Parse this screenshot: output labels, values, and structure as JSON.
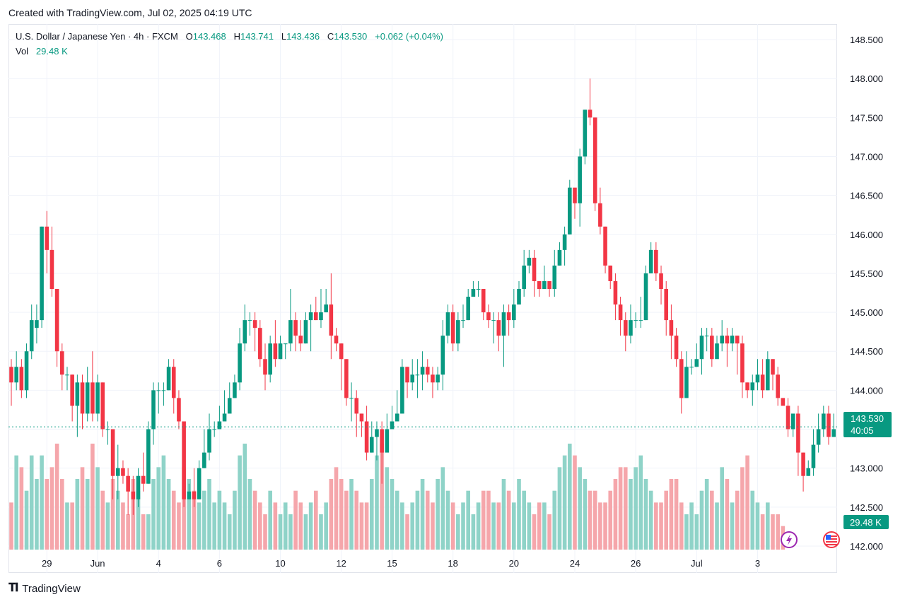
{
  "header": {
    "created_text": "Created with TradingView.com, Jul 02, 2025 04:19 UTC"
  },
  "legend": {
    "symbol": "U.S. Dollar / Japanese Yen · 4h · FXCM",
    "o_label": "O",
    "o_value": "143.468",
    "h_label": "H",
    "h_value": "143.741",
    "l_label": "L",
    "l_value": "143.436",
    "c_label": "C",
    "c_value": "143.530",
    "change": "+0.062 (+0.04%)",
    "vol_label": "Vol",
    "vol_value": "29.48 K"
  },
  "price_badge": {
    "price": "143.530",
    "countdown": "40:05"
  },
  "volume_badge": {
    "value": "29.48 K"
  },
  "footer": {
    "brand": "TradingView"
  },
  "colors": {
    "up": "#089981",
    "down": "#f23645",
    "vol_up": "#8fd3c8",
    "vol_down": "#f5a6ab",
    "last_line": "#089981"
  },
  "icons": {
    "flash": "flash-icon",
    "flag": "us-flag-icon"
  },
  "chart_data": {
    "type": "candlestick",
    "y_ticks": [
      "142.000",
      "142.500",
      "143.000",
      "143.500",
      "144.000",
      "144.500",
      "145.000",
      "145.500",
      "146.000",
      "146.500",
      "147.000",
      "147.500",
      "148.000",
      "148.500"
    ],
    "ylim": [
      141.9,
      148.7
    ],
    "x_ticks": [
      {
        "label": "29",
        "index": 7
      },
      {
        "label": "Jun",
        "index": 17
      },
      {
        "label": "4",
        "index": 29
      },
      {
        "label": "6",
        "index": 41
      },
      {
        "label": "10",
        "index": 53
      },
      {
        "label": "12",
        "index": 65
      },
      {
        "label": "15",
        "index": 75
      },
      {
        "label": "18",
        "index": 87
      },
      {
        "label": "20",
        "index": 99
      },
      {
        "label": "24",
        "index": 111
      },
      {
        "label": "26",
        "index": 123
      },
      {
        "label": "Jul",
        "index": 135
      },
      {
        "label": "3",
        "index": 147
      }
    ],
    "last_price": 143.53,
    "candles": [
      [
        144.3,
        144.1,
        144.4,
        143.8
      ],
      [
        144.1,
        144.3,
        144.5,
        144.0
      ],
      [
        144.3,
        144.0,
        144.4,
        143.9
      ],
      [
        144.0,
        144.5,
        144.6,
        143.9
      ],
      [
        144.5,
        144.9,
        145.1,
        144.4
      ],
      [
        144.8,
        144.9,
        145.1,
        144.6
      ],
      [
        144.9,
        146.1,
        146.1,
        144.8
      ],
      [
        146.1,
        145.8,
        146.3,
        145.5
      ],
      [
        145.8,
        145.3,
        146.1,
        145.2
      ],
      [
        145.3,
        144.5,
        145.3,
        144.3
      ],
      [
        144.5,
        144.2,
        144.6,
        144.0
      ],
      [
        144.2,
        144.2,
        144.3,
        144.0
      ],
      [
        144.2,
        143.8,
        144.2,
        143.6
      ],
      [
        143.8,
        144.1,
        144.2,
        143.4
      ],
      [
        144.1,
        143.7,
        144.2,
        143.5
      ],
      [
        143.7,
        144.1,
        144.3,
        143.6
      ],
      [
        144.1,
        143.7,
        144.5,
        143.6
      ],
      [
        143.7,
        144.1,
        144.2,
        143.6
      ],
      [
        144.1,
        143.5,
        144.1,
        143.4
      ],
      [
        143.5,
        143.5,
        143.6,
        143.3
      ],
      [
        143.5,
        142.9,
        143.5,
        142.6
      ],
      [
        142.9,
        143.0,
        143.3,
        142.6
      ],
      [
        143.0,
        142.9,
        143.1,
        142.8
      ],
      [
        142.9,
        142.7,
        143.0,
        142.4
      ],
      [
        142.7,
        142.6,
        142.9,
        142.4
      ],
      [
        142.6,
        142.9,
        143.0,
        142.5
      ],
      [
        142.9,
        142.8,
        143.2,
        142.7
      ],
      [
        142.8,
        143.5,
        143.6,
        142.8
      ],
      [
        143.5,
        144.0,
        144.1,
        143.3
      ],
      [
        144.0,
        144.0,
        144.1,
        143.7
      ],
      [
        144.0,
        144.0,
        144.1,
        143.8
      ],
      [
        144.0,
        144.3,
        144.4,
        144.0
      ],
      [
        144.3,
        143.9,
        144.4,
        143.7
      ],
      [
        143.9,
        143.6,
        144.0,
        143.5
      ],
      [
        143.6,
        142.6,
        143.6,
        142.5
      ],
      [
        142.6,
        142.7,
        142.8,
        142.6
      ],
      [
        142.7,
        142.6,
        143.0,
        142.5
      ],
      [
        142.6,
        143.0,
        143.1,
        142.6
      ],
      [
        143.0,
        143.2,
        143.5,
        143.0
      ],
      [
        143.2,
        143.5,
        143.7,
        143.1
      ],
      [
        143.5,
        143.5,
        143.6,
        143.4
      ],
      [
        143.5,
        143.6,
        143.8,
        143.5
      ],
      [
        143.6,
        143.7,
        144.0,
        143.6
      ],
      [
        143.7,
        143.9,
        144.1,
        143.8
      ],
      [
        143.9,
        144.1,
        144.2,
        143.9
      ],
      [
        144.1,
        144.6,
        144.8,
        144.0
      ],
      [
        144.6,
        144.9,
        145.1,
        144.5
      ],
      [
        144.9,
        144.9,
        145.0,
        144.7
      ],
      [
        144.9,
        144.8,
        145.0,
        144.5
      ],
      [
        144.8,
        144.4,
        144.9,
        144.3
      ],
      [
        144.4,
        144.2,
        144.6,
        144.0
      ],
      [
        144.2,
        144.6,
        144.7,
        144.1
      ],
      [
        144.6,
        144.4,
        144.9,
        144.3
      ],
      [
        144.4,
        144.6,
        144.7,
        144.4
      ],
      [
        144.6,
        144.6,
        144.6,
        144.4
      ],
      [
        144.6,
        144.9,
        145.3,
        144.5
      ],
      [
        144.9,
        144.7,
        145.0,
        144.5
      ],
      [
        144.7,
        144.6,
        144.9,
        144.5
      ],
      [
        144.6,
        144.9,
        145.0,
        144.6
      ],
      [
        144.9,
        145.0,
        145.1,
        144.5
      ],
      [
        145.0,
        144.9,
        145.2,
        144.9
      ],
      [
        144.9,
        145.0,
        145.3,
        144.8
      ],
      [
        145.0,
        145.1,
        145.3,
        145.0
      ],
      [
        145.1,
        144.7,
        145.5,
        144.4
      ],
      [
        144.7,
        144.6,
        144.8,
        144.5
      ],
      [
        144.6,
        144.4,
        144.6,
        144.0
      ],
      [
        144.4,
        143.9,
        144.4,
        143.8
      ],
      [
        143.9,
        143.9,
        144.1,
        143.6
      ],
      [
        143.9,
        143.7,
        144.0,
        143.4
      ],
      [
        143.7,
        143.6,
        143.7,
        143.4
      ],
      [
        143.6,
        143.2,
        143.8,
        143.1
      ],
      [
        143.2,
        143.4,
        143.6,
        143.2
      ],
      [
        143.4,
        143.5,
        143.6,
        143.1
      ],
      [
        143.5,
        143.2,
        143.6,
        142.8
      ],
      [
        143.2,
        143.5,
        143.7,
        143.4
      ],
      [
        143.5,
        143.6,
        143.8,
        143.5
      ],
      [
        143.6,
        143.7,
        144.0,
        143.7
      ],
      [
        143.7,
        144.3,
        144.4,
        143.7
      ],
      [
        144.3,
        144.1,
        144.3,
        143.9
      ],
      [
        144.1,
        144.2,
        144.4,
        144.0
      ],
      [
        144.2,
        144.2,
        144.4,
        143.9
      ],
      [
        144.2,
        144.3,
        144.5,
        144.0
      ],
      [
        144.3,
        144.2,
        144.4,
        144.1
      ],
      [
        144.2,
        144.1,
        144.3,
        143.9
      ],
      [
        144.1,
        144.2,
        144.3,
        144.0
      ],
      [
        144.2,
        144.7,
        144.9,
        144.0
      ],
      [
        144.7,
        145.0,
        145.1,
        144.6
      ],
      [
        145.0,
        144.6,
        145.1,
        144.5
      ],
      [
        144.6,
        144.9,
        145.0,
        144.5
      ],
      [
        144.9,
        144.9,
        145.1,
        144.8
      ],
      [
        144.9,
        145.2,
        145.3,
        144.9
      ],
      [
        145.2,
        145.3,
        145.4,
        145.2
      ],
      [
        145.3,
        145.3,
        145.4,
        145.2
      ],
      [
        145.3,
        145.0,
        145.3,
        144.9
      ],
      [
        145.0,
        144.9,
        145.1,
        144.8
      ],
      [
        144.9,
        144.9,
        145.0,
        144.6
      ],
      [
        144.9,
        144.7,
        145.0,
        144.5
      ],
      [
        144.7,
        145.0,
        145.1,
        144.3
      ],
      [
        145.0,
        144.9,
        145.1,
        144.7
      ],
      [
        144.9,
        145.1,
        145.3,
        144.8
      ],
      [
        145.1,
        145.3,
        145.4,
        145.1
      ],
      [
        145.3,
        145.6,
        145.8,
        145.2
      ],
      [
        145.6,
        145.7,
        145.8,
        145.5
      ],
      [
        145.7,
        145.4,
        145.8,
        145.2
      ],
      [
        145.4,
        145.3,
        145.4,
        145.2
      ],
      [
        145.3,
        145.4,
        145.6,
        145.3
      ],
      [
        145.4,
        145.3,
        145.4,
        145.2
      ],
      [
        145.3,
        145.6,
        145.8,
        145.2
      ],
      [
        145.6,
        145.8,
        145.9,
        145.6
      ],
      [
        145.8,
        146.0,
        146.1,
        145.6
      ],
      [
        146.0,
        146.6,
        146.7,
        146.0
      ],
      [
        146.6,
        146.4,
        146.5,
        146.2
      ],
      [
        146.4,
        147.0,
        147.1,
        146.1
      ],
      [
        147.0,
        147.6,
        147.6,
        146.9
      ],
      [
        147.6,
        147.5,
        148.0,
        147.4
      ],
      [
        147.5,
        146.4,
        147.5,
        146.3
      ],
      [
        146.4,
        146.1,
        146.6,
        146.0
      ],
      [
        146.1,
        145.6,
        146.1,
        145.5
      ],
      [
        145.6,
        145.4,
        145.6,
        145.3
      ],
      [
        145.4,
        145.1,
        145.5,
        144.9
      ],
      [
        145.1,
        144.9,
        145.2,
        144.7
      ],
      [
        144.9,
        144.7,
        145.0,
        144.5
      ],
      [
        144.7,
        144.9,
        145.1,
        144.6
      ],
      [
        144.9,
        144.9,
        145.0,
        144.8
      ],
      [
        144.9,
        144.9,
        145.2,
        144.8
      ],
      [
        144.9,
        145.5,
        145.6,
        144.9
      ],
      [
        145.5,
        145.8,
        145.9,
        145.5
      ],
      [
        145.8,
        145.5,
        145.9,
        145.4
      ],
      [
        145.5,
        145.3,
        145.6,
        145.1
      ],
      [
        145.3,
        144.9,
        145.4,
        144.7
      ],
      [
        144.9,
        144.7,
        145.1,
        144.4
      ],
      [
        144.7,
        144.4,
        144.8,
        144.3
      ],
      [
        144.4,
        143.9,
        144.5,
        143.7
      ],
      [
        143.9,
        144.3,
        144.5,
        143.9
      ],
      [
        144.3,
        144.3,
        144.4,
        144.2
      ],
      [
        144.3,
        144.4,
        144.6,
        144.3
      ],
      [
        144.4,
        144.7,
        144.8,
        144.2
      ],
      [
        144.7,
        144.7,
        144.8,
        144.5
      ],
      [
        144.7,
        144.4,
        144.8,
        144.3
      ],
      [
        144.4,
        144.6,
        144.7,
        144.5
      ],
      [
        144.6,
        144.7,
        144.9,
        144.5
      ],
      [
        144.7,
        144.6,
        144.8,
        144.3
      ],
      [
        144.6,
        144.7,
        144.8,
        144.5
      ],
      [
        144.7,
        144.6,
        144.7,
        144.2
      ],
      [
        144.6,
        144.1,
        144.7,
        143.9
      ],
      [
        144.1,
        144.0,
        144.1,
        143.9
      ],
      [
        144.0,
        144.1,
        144.2,
        143.8
      ],
      [
        144.1,
        144.2,
        144.4,
        144.0
      ],
      [
        144.2,
        144.0,
        144.4,
        143.9
      ],
      [
        144.0,
        144.4,
        144.5,
        144.0
      ],
      [
        144.4,
        144.2,
        144.4,
        144.0
      ],
      [
        144.2,
        143.9,
        144.3,
        143.8
      ],
      [
        143.9,
        143.8,
        143.9,
        143.8
      ],
      [
        143.8,
        143.5,
        143.9,
        143.4
      ],
      [
        143.5,
        143.7,
        143.7,
        143.4
      ],
      [
        143.7,
        143.2,
        143.8,
        142.9
      ],
      [
        143.2,
        142.9,
        143.2,
        142.7
      ],
      [
        142.9,
        143.0,
        143.1,
        142.9
      ],
      [
        143.0,
        143.3,
        143.5,
        142.9
      ],
      [
        143.3,
        143.5,
        143.7,
        143.2
      ],
      [
        143.5,
        143.7,
        143.8,
        143.4
      ],
      [
        143.7,
        143.4,
        143.8,
        143.3
      ],
      [
        143.4,
        143.5,
        143.7,
        143.4
      ]
    ],
    "volume": [
      4,
      8,
      7,
      5,
      8,
      6,
      8,
      6,
      7,
      9,
      6,
      4,
      4,
      6,
      7,
      6,
      9,
      7,
      5,
      4,
      6,
      5,
      4,
      3,
      6,
      5,
      3,
      3,
      6,
      7,
      8,
      6,
      5,
      4,
      7,
      6,
      5,
      4,
      5,
      6,
      4,
      5,
      4,
      3,
      5,
      8,
      9,
      6,
      5,
      4,
      3,
      5,
      4,
      3,
      4,
      3,
      5,
      4,
      3,
      4,
      5,
      3,
      4,
      6,
      7,
      6,
      5,
      6,
      5,
      4,
      4,
      6,
      8,
      9,
      7,
      6,
      5,
      4,
      3,
      4,
      5,
      6,
      5,
      4,
      6,
      7,
      5,
      4,
      3,
      4,
      5,
      3,
      4,
      5,
      5,
      4,
      4,
      6,
      5,
      4,
      6,
      5,
      4,
      3,
      4,
      4,
      3,
      5,
      7,
      8,
      9,
      8,
      7,
      6,
      5,
      5,
      4,
      4,
      5,
      6,
      7,
      7,
      6,
      7,
      8,
      6,
      5,
      4,
      4,
      5,
      6,
      6,
      4,
      3,
      4,
      3,
      5,
      6,
      5,
      4,
      7,
      6,
      4,
      5,
      7,
      8,
      5,
      4,
      3,
      4,
      3,
      3,
      2
    ]
  }
}
